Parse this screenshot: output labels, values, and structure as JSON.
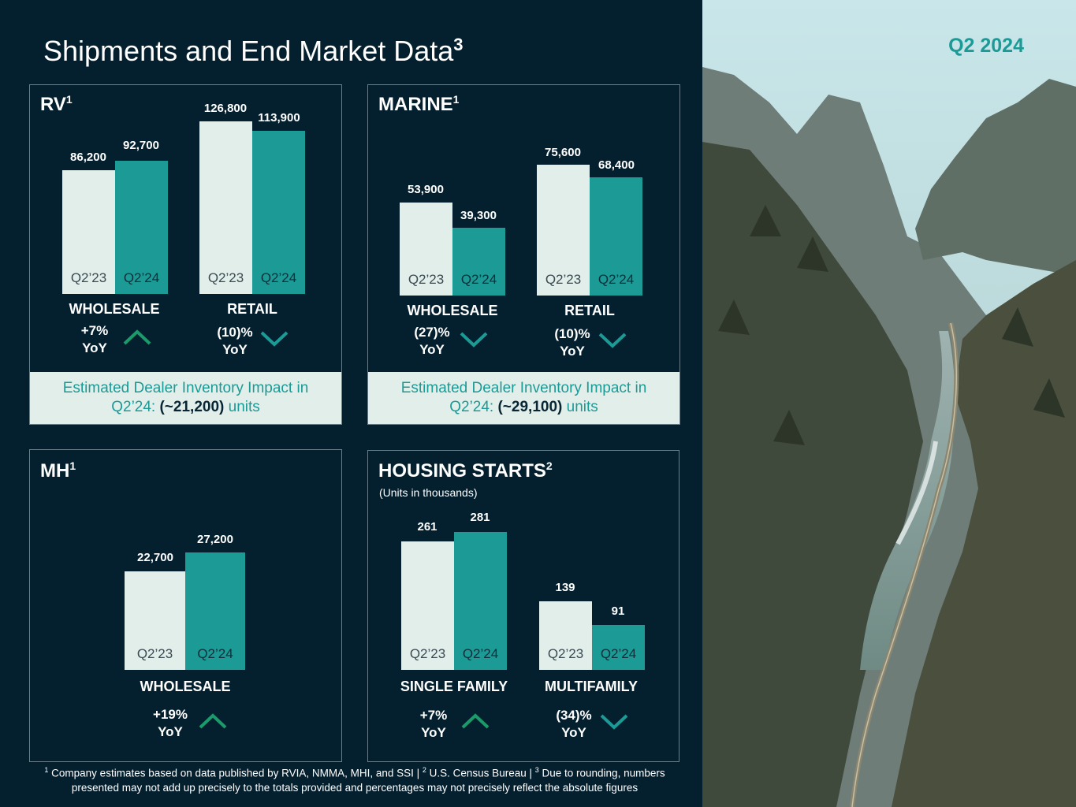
{
  "title": "Shipments and End Market Data",
  "title_sup": "3",
  "quarter_label": "Q2 2024",
  "colors": {
    "background": "#04202f",
    "accent": "#1b9a96",
    "light": "#e2eeea",
    "up": "#1b9a6a",
    "down": "#1b9a96"
  },
  "icons": {
    "up": "chevron-up-icon",
    "down": "chevron-down-icon"
  },
  "panels": {
    "rv": {
      "title": "RV",
      "sup": "1",
      "groups": [
        {
          "category": "WHOLESALE",
          "q223": {
            "label": "Q2’23",
            "value": "86,200"
          },
          "q224": {
            "label": "Q2’24",
            "value": "92,700"
          },
          "yoy": "+7%",
          "yoy2": "YoY",
          "direction": "up"
        },
        {
          "category": "RETAIL",
          "q223": {
            "label": "Q2’23",
            "value": "126,800"
          },
          "q224": {
            "label": "Q2’24",
            "value": "113,900"
          },
          "yoy": "(10)%",
          "yoy2": "YoY",
          "direction": "down"
        }
      ],
      "inventory": {
        "line1": "Estimated Dealer Inventory Impact in",
        "line2_pre": "Q2’24: ",
        "value": "(~21,200)",
        "units": " units"
      }
    },
    "marine": {
      "title": "MARINE",
      "sup": "1",
      "groups": [
        {
          "category": "WHOLESALE",
          "q223": {
            "label": "Q2’23",
            "value": "53,900"
          },
          "q224": {
            "label": "Q2’24",
            "value": "39,300"
          },
          "yoy": "(27)%",
          "yoy2": "YoY",
          "direction": "down"
        },
        {
          "category": "RETAIL",
          "q223": {
            "label": "Q2’23",
            "value": "75,600"
          },
          "q224": {
            "label": "Q2’24",
            "value": "68,400"
          },
          "yoy": "(10)%",
          "yoy2": "YoY",
          "direction": "down"
        }
      ],
      "inventory": {
        "line1": "Estimated Dealer Inventory Impact in",
        "line2_pre": "Q2’24: ",
        "value": "(~29,100)",
        "units": " units"
      }
    },
    "mh": {
      "title": "MH",
      "sup": "1",
      "groups": [
        {
          "category": "WHOLESALE",
          "q223": {
            "label": "Q2’23",
            "value": "22,700"
          },
          "q224": {
            "label": "Q2’24",
            "value": "27,200"
          },
          "yoy": "+19%",
          "yoy2": "YoY",
          "direction": "up"
        }
      ]
    },
    "housing": {
      "title": "HOUSING STARTS",
      "sup": "2",
      "subtitle": "(Units in thousands)",
      "groups": [
        {
          "category": "SINGLE FAMILY",
          "q223": {
            "label": "Q2’23",
            "value": "261"
          },
          "q224": {
            "label": "Q2’24",
            "value": "281"
          },
          "yoy": "+7%",
          "yoy2": "YoY",
          "direction": "up"
        },
        {
          "category": "MULTIFAMILY",
          "q223": {
            "label": "Q2’23",
            "value": "139"
          },
          "q224": {
            "label": "Q2’24",
            "value": "91"
          },
          "yoy": "(34)%",
          "yoy2": "YoY",
          "direction": "down"
        }
      ]
    }
  },
  "chart_data": [
    {
      "type": "bar",
      "title": "RV",
      "categories": [
        "WHOLESALE",
        "RETAIL"
      ],
      "series": [
        {
          "name": "Q2’23",
          "values": [
            86200,
            126800
          ]
        },
        {
          "name": "Q2’24",
          "values": [
            92700,
            113900
          ]
        }
      ]
    },
    {
      "type": "bar",
      "title": "MARINE",
      "categories": [
        "WHOLESALE",
        "RETAIL"
      ],
      "series": [
        {
          "name": "Q2’23",
          "values": [
            53900,
            75600
          ]
        },
        {
          "name": "Q2’24",
          "values": [
            39300,
            68400
          ]
        }
      ]
    },
    {
      "type": "bar",
      "title": "MH",
      "categories": [
        "WHOLESALE"
      ],
      "series": [
        {
          "name": "Q2’23",
          "values": [
            22700
          ]
        },
        {
          "name": "Q2’24",
          "values": [
            27200
          ]
        }
      ]
    },
    {
      "type": "bar",
      "title": "HOUSING STARTS",
      "ylabel": "Units in thousands",
      "categories": [
        "SINGLE FAMILY",
        "MULTIFAMILY"
      ],
      "series": [
        {
          "name": "Q2’23",
          "values": [
            261,
            139
          ]
        },
        {
          "name": "Q2’24",
          "values": [
            281,
            91
          ]
        }
      ]
    }
  ],
  "footnote": {
    "s1": "1",
    "t1": " Company estimates based on data published by RVIA, NMMA, MHI, and SSI | ",
    "s2": "2",
    "t2": " U.S. Census Bureau | ",
    "s3": "3",
    "t3": " Due to rounding, numbers presented may not add up precisely to the totals provided and percentages may not precisely reflect the absolute figures"
  }
}
